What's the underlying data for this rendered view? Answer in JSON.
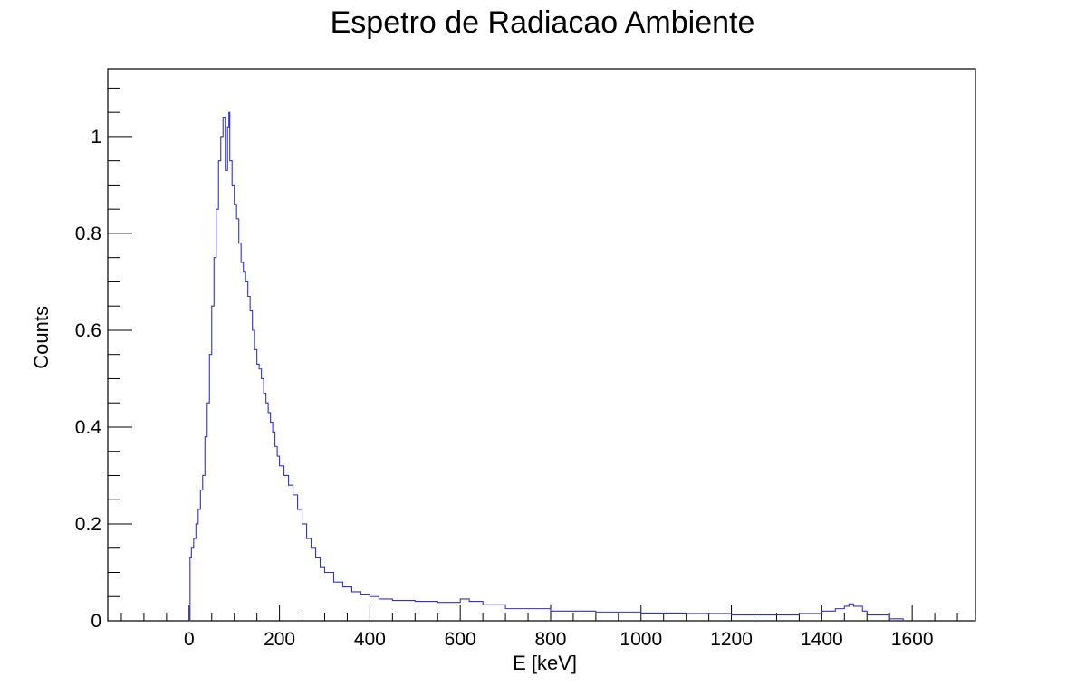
{
  "chart_data": {
    "type": "line",
    "title": "Espetro de Radiacao Ambiente",
    "xlabel": "E [keV]",
    "ylabel": "Counts",
    "xlim": [
      -180,
      1740
    ],
    "ylim": [
      0,
      1.14
    ],
    "x_ticks": [
      0,
      200,
      400,
      600,
      800,
      1000,
      1200,
      1400,
      1600
    ],
    "x_tick_labels": [
      "0",
      "200",
      "400",
      "600",
      "800",
      "1000",
      "1200",
      "1400",
      "1600"
    ],
    "y_ticks": [
      0,
      0.2,
      0.4,
      0.6,
      0.8,
      1.0
    ],
    "y_tick_labels": [
      "0",
      "0.2",
      "0.4",
      "0.6",
      "0.8",
      "1"
    ],
    "grid": false,
    "legend": "none",
    "line_color": "#3232d2",
    "series": [
      {
        "x": [
          0,
          2,
          5,
          10,
          15,
          20,
          25,
          30,
          35,
          40,
          45,
          50,
          55,
          60,
          65,
          70,
          75,
          80,
          85,
          88,
          90,
          95,
          100,
          105,
          110,
          115,
          120,
          125,
          130,
          135,
          140,
          145,
          150,
          155,
          160,
          165,
          170,
          175,
          180,
          185,
          190,
          195,
          200,
          210,
          220,
          230,
          240,
          250,
          260,
          270,
          280,
          290,
          300,
          320,
          340,
          360,
          380,
          400,
          420,
          450,
          500,
          550,
          600,
          620,
          650,
          700,
          800,
          900,
          1000,
          1100,
          1200,
          1300,
          1350,
          1400,
          1430,
          1450,
          1460,
          1470,
          1490,
          1500,
          1550,
          1580
        ],
        "y": [
          0.0,
          0.13,
          0.15,
          0.17,
          0.2,
          0.23,
          0.27,
          0.3,
          0.38,
          0.45,
          0.55,
          0.65,
          0.75,
          0.85,
          0.95,
          1.0,
          1.04,
          0.93,
          1.02,
          1.05,
          0.95,
          0.9,
          0.86,
          0.83,
          0.78,
          0.74,
          0.72,
          0.7,
          0.67,
          0.64,
          0.6,
          0.56,
          0.53,
          0.52,
          0.5,
          0.47,
          0.45,
          0.43,
          0.41,
          0.39,
          0.36,
          0.34,
          0.32,
          0.3,
          0.28,
          0.26,
          0.23,
          0.2,
          0.17,
          0.15,
          0.13,
          0.11,
          0.1,
          0.08,
          0.07,
          0.06,
          0.055,
          0.05,
          0.045,
          0.042,
          0.04,
          0.038,
          0.045,
          0.04,
          0.033,
          0.025,
          0.02,
          0.018,
          0.016,
          0.015,
          0.012,
          0.012,
          0.015,
          0.02,
          0.025,
          0.03,
          0.035,
          0.03,
          0.02,
          0.012,
          0.004,
          0.0
        ]
      }
    ]
  }
}
